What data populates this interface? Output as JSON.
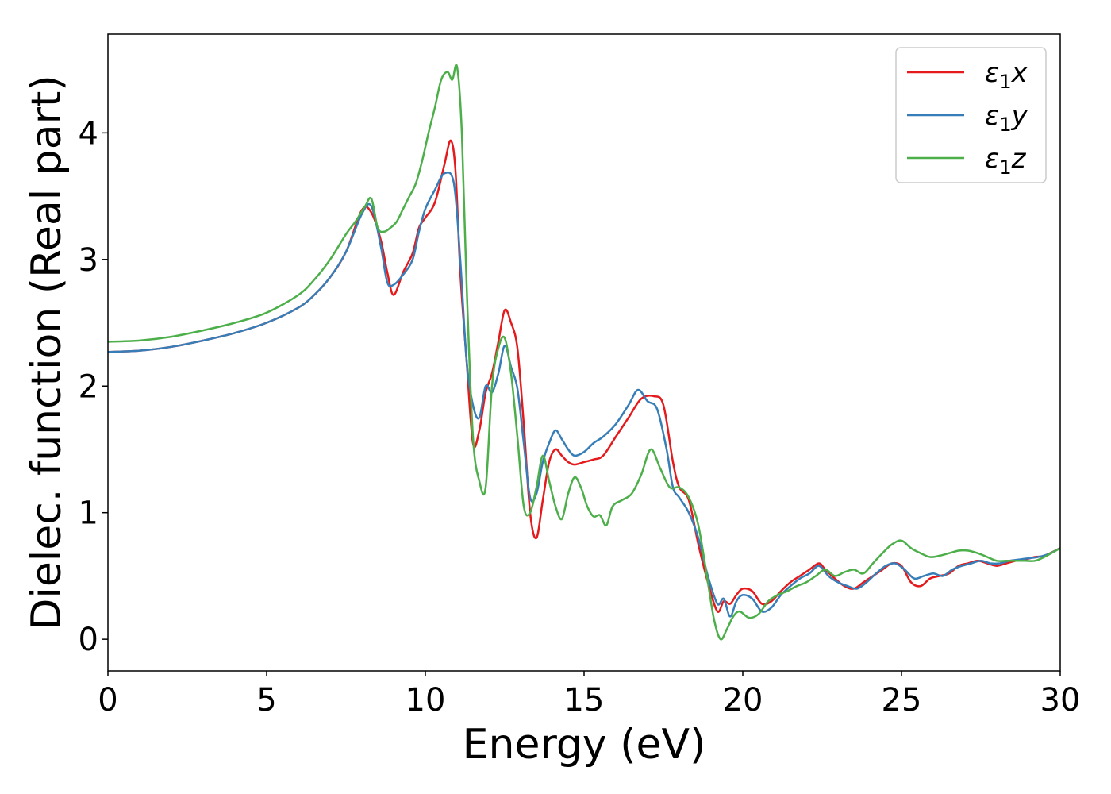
{
  "chart_data": {
    "type": "line",
    "title": "",
    "xlabel": "Energy (eV)",
    "ylabel": "Dielec. function (Real part)",
    "xlim": [
      0,
      30
    ],
    "ylim": [
      -0.25,
      4.78
    ],
    "xticks": [
      0,
      5,
      10,
      15,
      20,
      25,
      30
    ],
    "yticks": [
      0,
      1,
      2,
      3,
      4
    ],
    "grid": false,
    "legend_position": "top-right",
    "series": [
      {
        "name": "ε₁x",
        "legend_main": "ε",
        "legend_sub": "1",
        "legend_tail": "x",
        "color": "#e41a1c",
        "x": [
          0,
          1,
          2,
          3,
          4,
          5,
          6,
          6.5,
          7,
          7.5,
          8,
          8.3,
          8.6,
          8.8,
          9,
          9.3,
          9.6,
          9.8,
          10,
          10.3,
          10.6,
          10.8,
          10.95,
          11.1,
          11.3,
          11.5,
          11.7,
          11.9,
          12.1,
          12.3,
          12.5,
          12.7,
          12.9,
          13.1,
          13.3,
          13.5,
          13.7,
          13.9,
          14.1,
          14.3,
          14.5,
          14.7,
          15,
          15.3,
          15.6,
          16,
          16.4,
          16.8,
          17.2,
          17.5,
          17.8,
          18,
          18.3,
          18.6,
          18.9,
          19.2,
          19.4,
          19.6,
          19.8,
          20,
          20.3,
          20.6,
          20.9,
          21.2,
          21.5,
          21.8,
          22.1,
          22.4,
          22.6,
          22.9,
          23.2,
          23.5,
          23.8,
          24.1,
          24.4,
          24.7,
          25,
          25.3,
          25.6,
          25.9,
          26.2,
          26.5,
          26.8,
          27.1,
          27.4,
          27.7,
          28,
          28.3,
          28.6,
          28.9,
          29.2,
          29.5,
          30
        ],
        "y": [
          2.27,
          2.28,
          2.31,
          2.36,
          2.42,
          2.5,
          2.62,
          2.72,
          2.86,
          3.06,
          3.39,
          3.37,
          3.15,
          2.9,
          2.72,
          2.9,
          3.05,
          3.25,
          3.33,
          3.45,
          3.75,
          3.94,
          3.7,
          2.9,
          2.2,
          1.55,
          1.65,
          1.95,
          2.1,
          2.35,
          2.6,
          2.5,
          2.3,
          1.7,
          1.0,
          0.8,
          1.1,
          1.4,
          1.5,
          1.45,
          1.4,
          1.38,
          1.4,
          1.42,
          1.45,
          1.6,
          1.75,
          1.9,
          1.92,
          1.85,
          1.4,
          1.2,
          1.1,
          0.75,
          0.45,
          0.22,
          0.3,
          0.28,
          0.35,
          0.4,
          0.38,
          0.28,
          0.3,
          0.38,
          0.45,
          0.5,
          0.55,
          0.6,
          0.55,
          0.48,
          0.42,
          0.4,
          0.45,
          0.5,
          0.55,
          0.6,
          0.58,
          0.45,
          0.42,
          0.48,
          0.5,
          0.52,
          0.58,
          0.6,
          0.62,
          0.6,
          0.58,
          0.6,
          0.62,
          0.63,
          0.65,
          0.66,
          0.72
        ]
      },
      {
        "name": "ε₁y",
        "legend_main": "ε",
        "legend_sub": "1",
        "legend_tail": "y",
        "color": "#377eb8",
        "x": [
          0,
          1,
          2,
          3,
          4,
          5,
          6,
          6.5,
          7,
          7.5,
          8,
          8.3,
          8.6,
          8.8,
          9,
          9.3,
          9.6,
          9.8,
          10,
          10.3,
          10.6,
          10.9,
          11.1,
          11.3,
          11.5,
          11.7,
          11.9,
          12.1,
          12.3,
          12.5,
          12.7,
          12.9,
          13.1,
          13.3,
          13.5,
          13.7,
          13.9,
          14.1,
          14.3,
          14.5,
          14.7,
          15,
          15.3,
          15.6,
          16,
          16.4,
          16.7,
          17,
          17.3,
          17.6,
          17.8,
          18,
          18.3,
          18.6,
          18.9,
          19.2,
          19.4,
          19.6,
          19.8,
          20,
          20.3,
          20.6,
          20.9,
          21.2,
          21.5,
          21.8,
          22.1,
          22.4,
          22.7,
          23,
          23.3,
          23.6,
          23.9,
          24.2,
          24.5,
          24.8,
          25.1,
          25.4,
          25.7,
          26,
          26.3,
          26.6,
          26.9,
          27.2,
          27.5,
          27.8,
          28.1,
          28.4,
          28.7,
          29,
          29.3,
          29.6,
          30
        ],
        "y": [
          2.27,
          2.28,
          2.31,
          2.36,
          2.42,
          2.5,
          2.62,
          2.72,
          2.86,
          3.06,
          3.36,
          3.42,
          3.1,
          2.82,
          2.8,
          2.88,
          3.0,
          3.22,
          3.4,
          3.55,
          3.68,
          3.6,
          3.0,
          2.2,
          1.85,
          1.75,
          2.0,
          1.95,
          2.1,
          2.32,
          2.15,
          1.98,
          1.55,
          1.12,
          1.15,
          1.4,
          1.55,
          1.65,
          1.58,
          1.5,
          1.45,
          1.48,
          1.55,
          1.6,
          1.7,
          1.85,
          1.97,
          1.88,
          1.82,
          1.5,
          1.2,
          1.12,
          1.0,
          0.8,
          0.5,
          0.28,
          0.32,
          0.18,
          0.3,
          0.35,
          0.32,
          0.22,
          0.25,
          0.35,
          0.42,
          0.48,
          0.52,
          0.58,
          0.5,
          0.45,
          0.42,
          0.4,
          0.45,
          0.52,
          0.58,
          0.6,
          0.55,
          0.48,
          0.5,
          0.52,
          0.5,
          0.55,
          0.58,
          0.6,
          0.62,
          0.6,
          0.6,
          0.62,
          0.63,
          0.64,
          0.65,
          0.67,
          0.72
        ]
      },
      {
        "name": "ε₁z",
        "legend_main": "ε",
        "legend_sub": "1",
        "legend_tail": "z",
        "color": "#4daf4a",
        "x": [
          0,
          1,
          2,
          3,
          4,
          5,
          6,
          6.5,
          7,
          7.5,
          7.8,
          8.1,
          8.3,
          8.5,
          8.7,
          8.9,
          9.1,
          9.3,
          9.5,
          9.7,
          9.9,
          10.1,
          10.3,
          10.5,
          10.7,
          10.85,
          11,
          11.15,
          11.3,
          11.5,
          11.7,
          11.9,
          12.1,
          12.3,
          12.5,
          12.7,
          12.9,
          13.1,
          13.3,
          13.5,
          13.7,
          13.9,
          14.1,
          14.3,
          14.5,
          14.7,
          14.9,
          15.1,
          15.3,
          15.5,
          15.7,
          15.9,
          16.2,
          16.5,
          16.8,
          17.1,
          17.4,
          17.7,
          18,
          18.3,
          18.6,
          18.9,
          19.1,
          19.3,
          19.5,
          19.7,
          19.9,
          20.2,
          20.5,
          20.8,
          21.1,
          21.4,
          21.7,
          22,
          22.3,
          22.6,
          22.9,
          23.2,
          23.5,
          23.8,
          24.1,
          24.4,
          24.7,
          25,
          25.3,
          25.6,
          25.9,
          26.2,
          26.5,
          26.8,
          27.1,
          27.4,
          27.7,
          28,
          28.3,
          28.6,
          28.9,
          29.2,
          29.5,
          30
        ],
        "y": [
          2.35,
          2.36,
          2.39,
          2.44,
          2.5,
          2.58,
          2.72,
          2.84,
          3.0,
          3.2,
          3.3,
          3.42,
          3.48,
          3.25,
          3.22,
          3.25,
          3.3,
          3.4,
          3.5,
          3.6,
          3.78,
          4.0,
          4.2,
          4.42,
          4.48,
          4.42,
          4.52,
          4.0,
          2.8,
          1.6,
          1.25,
          1.2,
          2.0,
          2.3,
          2.38,
          2.1,
          1.6,
          1.05,
          1.0,
          1.2,
          1.45,
          1.25,
          1.05,
          0.95,
          1.15,
          1.28,
          1.2,
          1.05,
          0.97,
          0.98,
          0.9,
          1.05,
          1.1,
          1.15,
          1.3,
          1.5,
          1.35,
          1.2,
          1.2,
          1.12,
          0.9,
          0.45,
          0.15,
          0.0,
          0.08,
          0.18,
          0.22,
          0.17,
          0.2,
          0.3,
          0.35,
          0.38,
          0.42,
          0.45,
          0.5,
          0.55,
          0.5,
          0.53,
          0.55,
          0.52,
          0.6,
          0.68,
          0.75,
          0.78,
          0.72,
          0.68,
          0.65,
          0.66,
          0.68,
          0.7,
          0.7,
          0.68,
          0.65,
          0.62,
          0.62,
          0.62,
          0.62,
          0.62,
          0.65,
          0.72
        ]
      }
    ]
  }
}
